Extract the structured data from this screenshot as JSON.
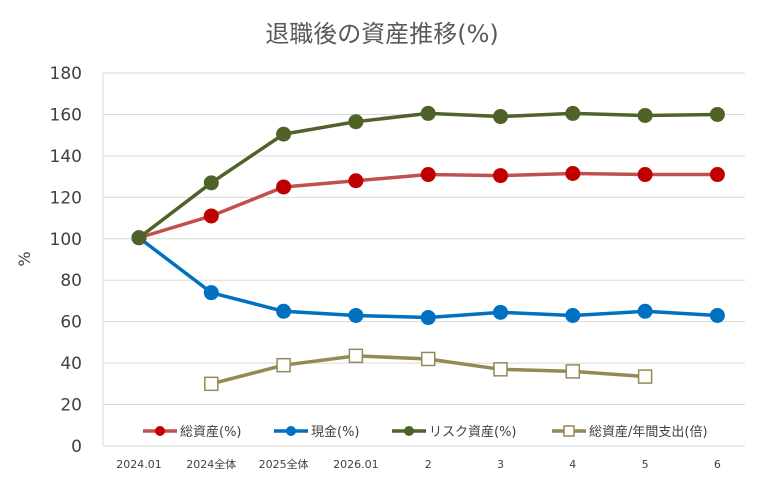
{
  "chart_data": {
    "type": "line",
    "title": "退職後の資産推移(%)",
    "xlabel": "",
    "ylabel": "%",
    "ylim": [
      0,
      180
    ],
    "yticks": [
      0,
      20,
      40,
      60,
      80,
      100,
      120,
      140,
      160,
      180
    ],
    "grid": true,
    "legend_position": "bottom",
    "categories": [
      "2024.01",
      "2024全体",
      "2025全体",
      "2026.01",
      "2",
      "3",
      "4",
      "5",
      "6"
    ],
    "series": [
      {
        "name": "総資産(%)",
        "color": "#c0504d",
        "marker": "circle",
        "marker_color": "#c00000",
        "values": [
          100.5,
          111,
          125,
          128,
          131,
          130.5,
          131.5,
          131,
          131
        ]
      },
      {
        "name": "現金(%)",
        "color": "#0070c0",
        "marker": "circle",
        "marker_color": "#0070c0",
        "values": [
          100.5,
          74,
          65,
          63,
          62,
          64.5,
          63,
          65,
          63
        ]
      },
      {
        "name": "リスク資産(%)",
        "color": "#4f6228",
        "marker": "circle",
        "marker_color": "#4f6228",
        "values": [
          100.5,
          127,
          150.5,
          156.5,
          160.5,
          159,
          160.5,
          159.5,
          160
        ]
      },
      {
        "name": "総資産/年間支出(倍)",
        "color": "#948a54",
        "marker": "square-open",
        "marker_color": "#948a54",
        "values": [
          null,
          30,
          39,
          43.5,
          42,
          37,
          36,
          33.5,
          null
        ]
      }
    ]
  }
}
